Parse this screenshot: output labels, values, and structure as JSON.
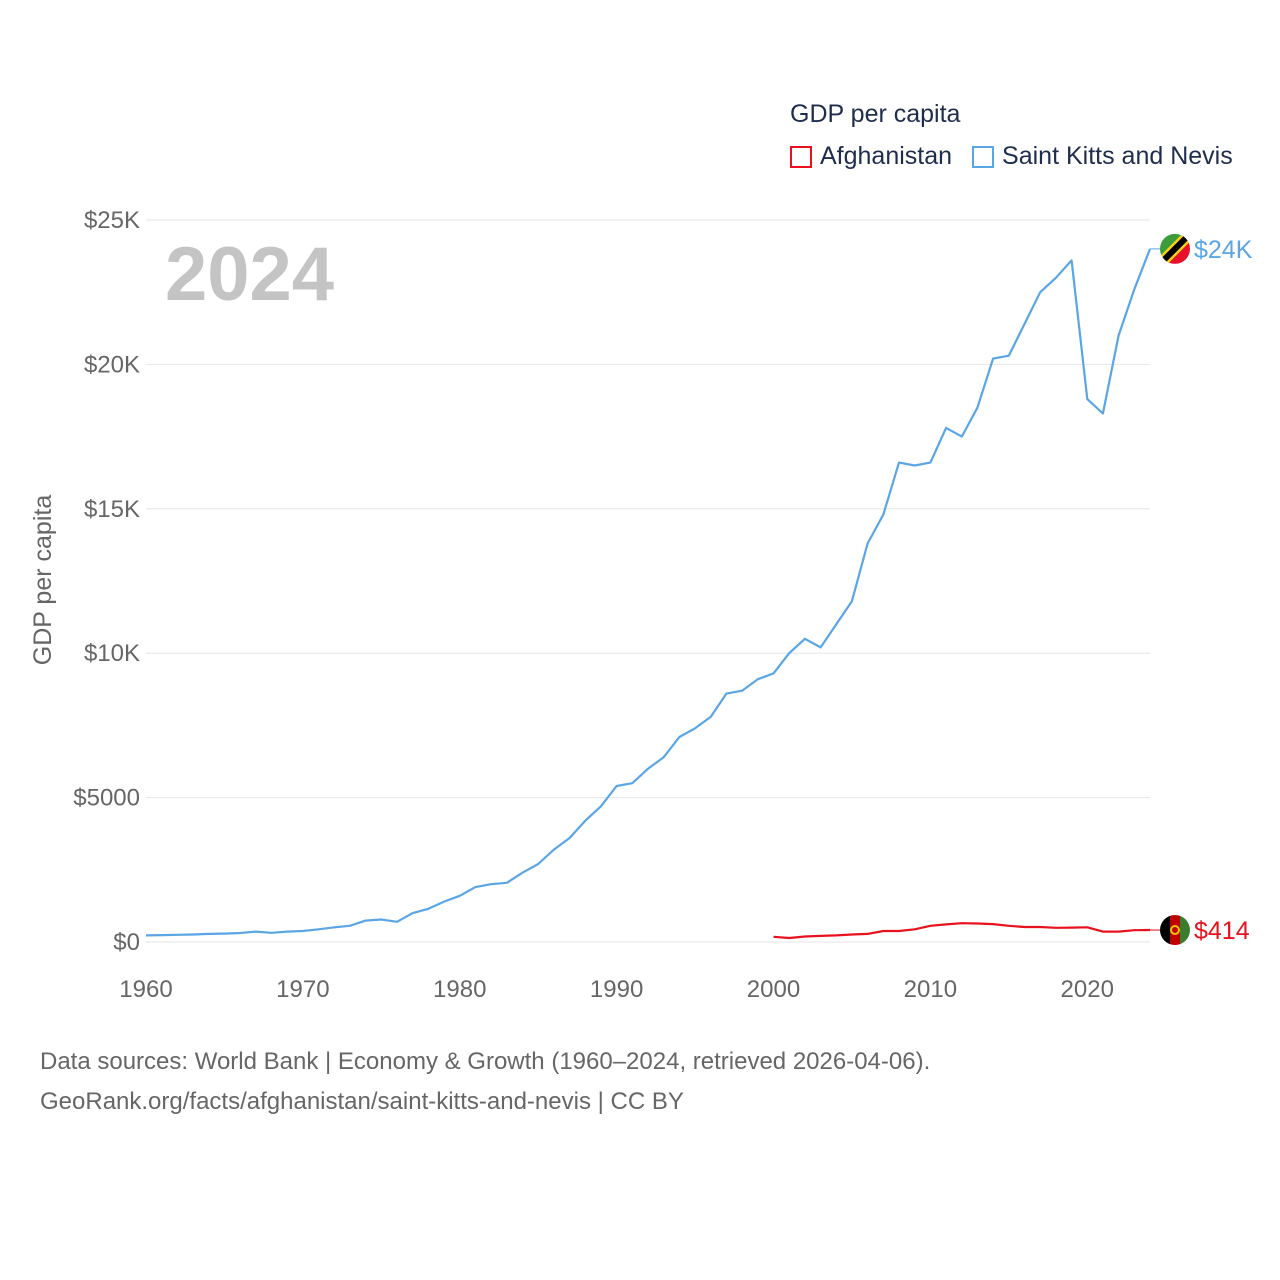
{
  "chart_data": {
    "type": "line",
    "title": "",
    "ylabel": "GDP per capita",
    "xlabel": "",
    "year_overlay": "2024",
    "xlim": [
      1960,
      2024
    ],
    "ylim": [
      0,
      25000
    ],
    "x_ticks": [
      1960,
      1970,
      1980,
      1990,
      2000,
      2010,
      2020
    ],
    "x_tick_labels": [
      "1960",
      "1970",
      "1980",
      "1990",
      "2000",
      "2010",
      "2020"
    ],
    "y_ticks": [
      0,
      5000,
      10000,
      15000,
      20000,
      25000
    ],
    "y_tick_labels": [
      "$0",
      "$5000",
      "$10K",
      "$15K",
      "$20K",
      "$25K"
    ],
    "grid": true,
    "legend_title": "GDP per capita",
    "legend_position": "top-right",
    "series": [
      {
        "name": "Afghanistan",
        "color": "#e8111d",
        "end_label": "$414",
        "flag": "afghanistan-flag",
        "x": [
          2000,
          2001,
          2002,
          2003,
          2004,
          2005,
          2006,
          2007,
          2008,
          2009,
          2010,
          2011,
          2012,
          2013,
          2014,
          2015,
          2016,
          2017,
          2018,
          2019,
          2020,
          2021,
          2022,
          2023,
          2024
        ],
        "values": [
          180,
          140,
          190,
          210,
          230,
          260,
          280,
          380,
          380,
          440,
          560,
          610,
          650,
          640,
          620,
          560,
          520,
          520,
          490,
          500,
          510,
          360,
          360,
          410,
          414
        ]
      },
      {
        "name": "Saint Kitts and Nevis",
        "color": "#5aa5e6",
        "end_label": "$24K",
        "flag": "saint-kitts-and-nevis-flag",
        "x": [
          1960,
          1961,
          1962,
          1963,
          1964,
          1965,
          1966,
          1967,
          1968,
          1969,
          1970,
          1971,
          1972,
          1973,
          1974,
          1975,
          1976,
          1977,
          1978,
          1979,
          1980,
          1981,
          1982,
          1983,
          1984,
          1985,
          1986,
          1987,
          1988,
          1989,
          1990,
          1991,
          1992,
          1993,
          1994,
          1995,
          1996,
          1997,
          1998,
          1999,
          2000,
          2001,
          2002,
          2003,
          2004,
          2005,
          2006,
          2007,
          2008,
          2009,
          2010,
          2011,
          2012,
          2013,
          2014,
          2015,
          2016,
          2017,
          2018,
          2019,
          2020,
          2021,
          2022,
          2023,
          2024
        ],
        "values": [
          230,
          240,
          250,
          260,
          280,
          290,
          310,
          360,
          320,
          360,
          380,
          440,
          510,
          560,
          740,
          780,
          700,
          1000,
          1150,
          1400,
          1600,
          1900,
          2000,
          2050,
          2400,
          2700,
          3200,
          3600,
          4200,
          4700,
          5400,
          5500,
          6000,
          6400,
          7100,
          7400,
          7800,
          8600,
          8700,
          9100,
          9300,
          10000,
          10500,
          10200,
          11000,
          11800,
          13800,
          14800,
          16600,
          16500,
          16600,
          17800,
          17500,
          18500,
          20200,
          20300,
          21400,
          22500,
          23000,
          23600,
          18800,
          18300,
          21000,
          22600,
          24000
        ]
      }
    ]
  },
  "footer": {
    "line1": "Data sources: World Bank | Economy & Growth (1960–2024, retrieved 2026-04-06).",
    "line2": "GeoRank.org/facts/afghanistan/saint-kitts-and-nevis | CC BY"
  }
}
